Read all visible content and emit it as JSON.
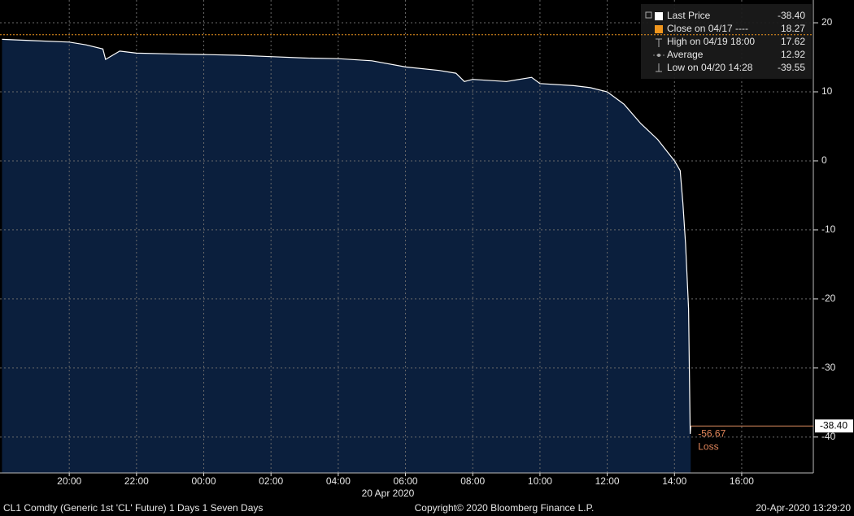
{
  "chart_data": {
    "type": "area",
    "x": [
      18,
      19,
      20,
      20.5,
      21,
      21.08,
      21.5,
      22,
      23,
      24,
      25,
      26,
      27,
      28,
      29,
      30,
      31,
      31.5,
      31.75,
      32,
      33,
      33.75,
      34,
      35,
      35.5,
      36,
      36.5,
      37,
      37.5,
      38,
      38.17,
      38.25,
      38.33,
      38.42,
      38.467,
      38.483
    ],
    "series": [
      {
        "color": "#ffffff",
        "fill": "#0b1f3d",
        "values": [
          17.6,
          17.4,
          17.2,
          16.8,
          16.2,
          14.7,
          15.9,
          15.6,
          15.5,
          15.4,
          15.3,
          15.1,
          14.9,
          14.8,
          14.5,
          13.6,
          13.1,
          12.7,
          11.5,
          11.8,
          11.5,
          12.1,
          11.2,
          10.9,
          10.6,
          10.0,
          8.2,
          5.4,
          3.1,
          0,
          -1.4,
          -6.1,
          -12,
          -21.4,
          -39.55,
          -38.4
        ]
      }
    ],
    "xlim": [
      17.94,
      42.13
    ],
    "xticks": [
      {
        "value": 20,
        "label": "20:00"
      },
      {
        "value": 22,
        "label": "22:00"
      },
      {
        "value": 24,
        "label": "00:00"
      },
      {
        "value": 26,
        "label": "02:00"
      },
      {
        "value": 28,
        "label": "04:00"
      },
      {
        "value": 30,
        "label": "06:00"
      },
      {
        "value": 32,
        "label": "08:00"
      },
      {
        "value": 34,
        "label": "10:00"
      },
      {
        "value": 36,
        "label": "12:00"
      },
      {
        "value": 38,
        "label": "14:00"
      },
      {
        "value": 40,
        "label": "16:00"
      }
    ],
    "xlabel": "20 Apr 2020",
    "ylim": [
      -45.2,
      23.3
    ],
    "yticks": [
      20,
      10,
      0,
      -10,
      -20,
      -30,
      -40
    ],
    "grid": true,
    "legend": {
      "labels": [
        "Last Price",
        "Close on 04/17 ----",
        "High on 04/19 18:00",
        "Average",
        "Low on 04/20 14:28"
      ],
      "values": [
        -38.4,
        18.27,
        17.62,
        12.92,
        -39.55
      ],
      "value_labels": [
        "-38.40",
        "18.27",
        "17.62",
        "12.92",
        "-39.55"
      ],
      "colors": [
        "#ffffff",
        "#f0961e"
      ]
    },
    "annotations": [
      "-56.67",
      "Loss"
    ]
  },
  "footer": {
    "left": "CL1 Comdty (Generic 1st 'CL' Future) 1 Days 1 Seven Days",
    "center": "Copyright© 2020 Bloomberg Finance L.P.",
    "right": "20-Apr-2020 13:29:20"
  }
}
